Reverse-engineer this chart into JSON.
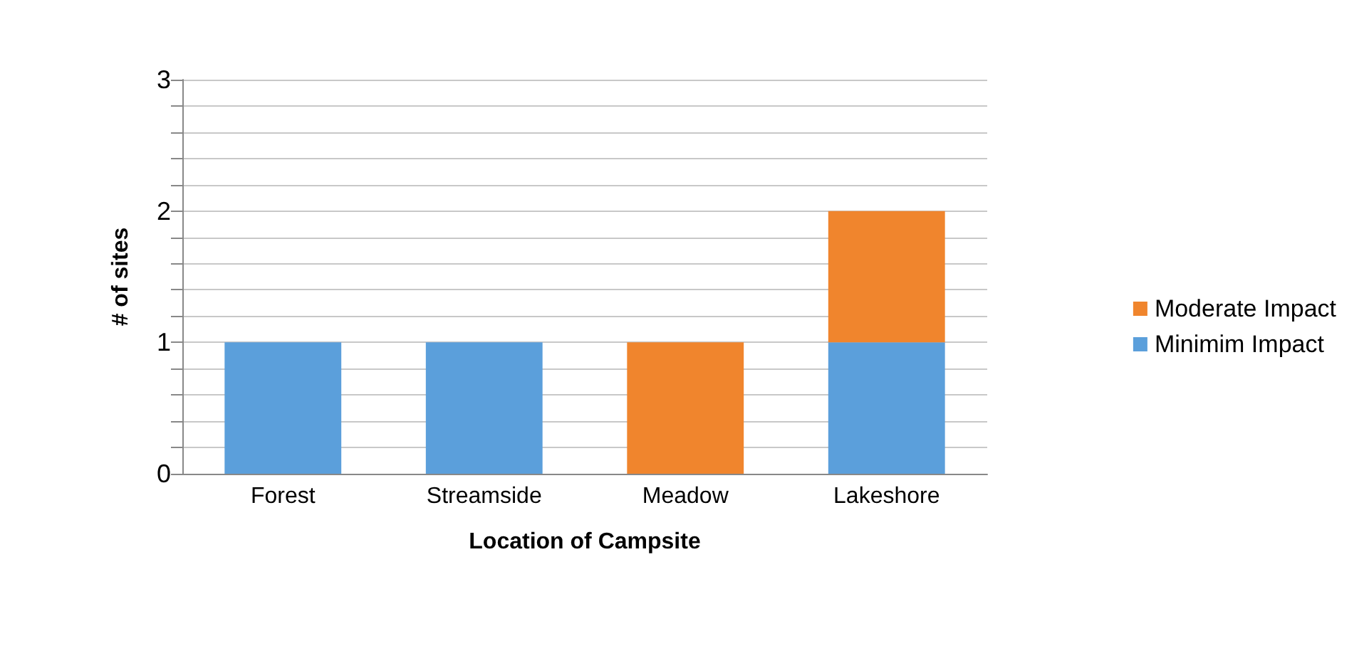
{
  "chart_data": {
    "type": "bar",
    "stacked": true,
    "xlabel": "Location of Campsite",
    "ylabel": "# of sites",
    "categories": [
      "Forest",
      "Streamside",
      "Meadow",
      "Lakeshore"
    ],
    "series": [
      {
        "name": "Minimim Impact",
        "color": "#5b9fdb",
        "values": [
          1,
          1,
          0,
          1
        ]
      },
      {
        "name": "Moderate Impact",
        "color": "#f0852d",
        "values": [
          0,
          0,
          1,
          1
        ]
      }
    ],
    "ylim": [
      0,
      3
    ],
    "yticks": [
      0,
      {
        "value": 0.2,
        "label": null
      },
      {
        "value": 0.4,
        "label": null
      },
      {
        "value": 0.6,
        "label": null
      },
      {
        "value": 0.8,
        "label": null
      },
      1,
      {
        "value": 1.2,
        "label": null
      },
      {
        "value": 1.4,
        "label": null
      },
      {
        "value": 1.6,
        "label": null
      },
      {
        "value": 1.8,
        "label": null
      },
      2,
      {
        "value": 2.2,
        "label": null
      },
      {
        "value": 2.4,
        "label": null
      },
      {
        "value": 2.6,
        "label": null
      },
      {
        "value": 2.8,
        "label": null
      },
      3
    ],
    "grid": "y",
    "legend": "right"
  }
}
